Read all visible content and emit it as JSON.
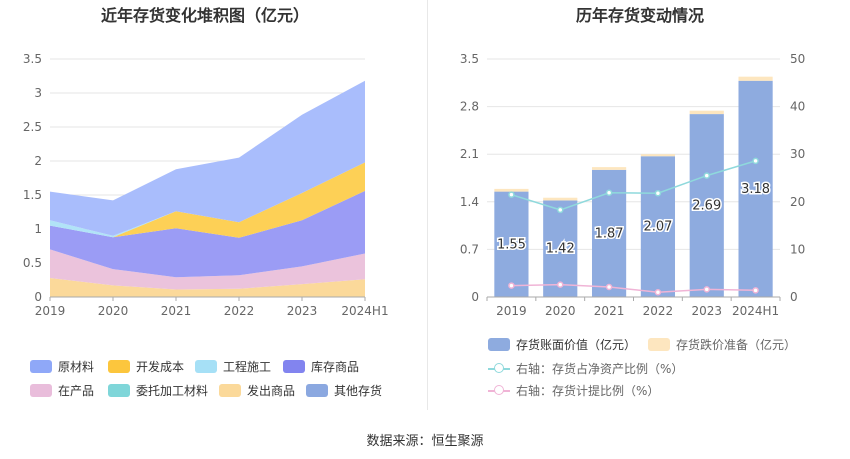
{
  "left_title": "近年存货变化堆积图（亿元）",
  "right_title": "历年存货变动情况",
  "source_text": "数据来源：恒生聚源",
  "chart_data": [
    {
      "type": "area",
      "stacked": true,
      "title": "近年存货变化堆积图（亿元）",
      "categories": [
        "2019",
        "2020",
        "2021",
        "2022",
        "2023",
        "2024H1"
      ],
      "ylim": [
        0,
        3.5
      ],
      "yticks": [
        "0",
        "0.5",
        "1",
        "1.5",
        "2",
        "2.5",
        "3",
        "3.5"
      ],
      "series": [
        {
          "name": "发出商品",
          "color": "#fbd99a",
          "values": [
            0.28,
            0.17,
            0.11,
            0.12,
            0.19,
            0.26
          ]
        },
        {
          "name": "在产品",
          "color": "#ebc3dc",
          "values": [
            0.42,
            0.24,
            0.18,
            0.2,
            0.26,
            0.38
          ]
        },
        {
          "name": "库存商品",
          "color": "#9b9cf5",
          "values": [
            0.35,
            0.47,
            0.72,
            0.55,
            0.68,
            0.92
          ]
        },
        {
          "name": "开发成本",
          "color": "#fdd056",
          "values": [
            0.0,
            0.0,
            0.25,
            0.23,
            0.4,
            0.42
          ]
        },
        {
          "name": "工程施工",
          "color": "#b1e3f7",
          "values": [
            0.08,
            0.02,
            0.0,
            0.0,
            0.0,
            0.0
          ]
        },
        {
          "name": "原材料",
          "color": "#a9bdfc",
          "values": [
            0.42,
            0.52,
            0.62,
            0.95,
            1.15,
            1.2
          ]
        }
      ],
      "legend": [
        {
          "name": "原材料",
          "color": "#8fa8f8"
        },
        {
          "name": "开发成本",
          "color": "#fcc63d"
        },
        {
          "name": "工程施工",
          "color": "#a6e0f6"
        },
        {
          "name": "库存商品",
          "color": "#8284ef"
        },
        {
          "name": "在产品",
          "color": "#e9bddb"
        },
        {
          "name": "委托加工材料",
          "color": "#7fd6d9"
        },
        {
          "name": "发出商品",
          "color": "#fbd99a"
        },
        {
          "name": "其他存货",
          "color": "#8ba8e0"
        }
      ]
    },
    {
      "type": "bar",
      "title": "历年存货变动情况",
      "categories": [
        "2019",
        "2020",
        "2021",
        "2022",
        "2023",
        "2024H1"
      ],
      "ylim_left": [
        0,
        3.5
      ],
      "yticks_left": [
        "0",
        "0.7",
        "1.4",
        "2.1",
        "2.8",
        "3.5"
      ],
      "ylim_right": [
        0,
        50
      ],
      "yticks_right": [
        "0",
        "10",
        "20",
        "30",
        "40",
        "50"
      ],
      "series": [
        {
          "name": "存货账面价值（亿元）",
          "color": "#8eabdf",
          "values": [
            1.55,
            1.42,
            1.87,
            2.07,
            2.69,
            3.18
          ]
        },
        {
          "name": "存货跌价准备（亿元）",
          "color": "#fde6bf",
          "values": [
            0.04,
            0.04,
            0.04,
            0.03,
            0.05,
            0.06
          ]
        },
        {
          "name": "右轴：存货占净资产比例（%）",
          "color": "#8fd9dc",
          "axis": "right",
          "values": [
            21.5,
            18.3,
            21.9,
            21.8,
            25.5,
            28.6
          ]
        },
        {
          "name": "右轴：存货计提比例（%）",
          "color": "#f0b4d6",
          "axis": "right",
          "values": [
            2.4,
            2.6,
            2.1,
            1.0,
            1.6,
            1.4
          ]
        }
      ],
      "data_labels": [
        "1.55",
        "1.42",
        "1.87",
        "2.07",
        "2.69",
        "3.18"
      ]
    }
  ]
}
